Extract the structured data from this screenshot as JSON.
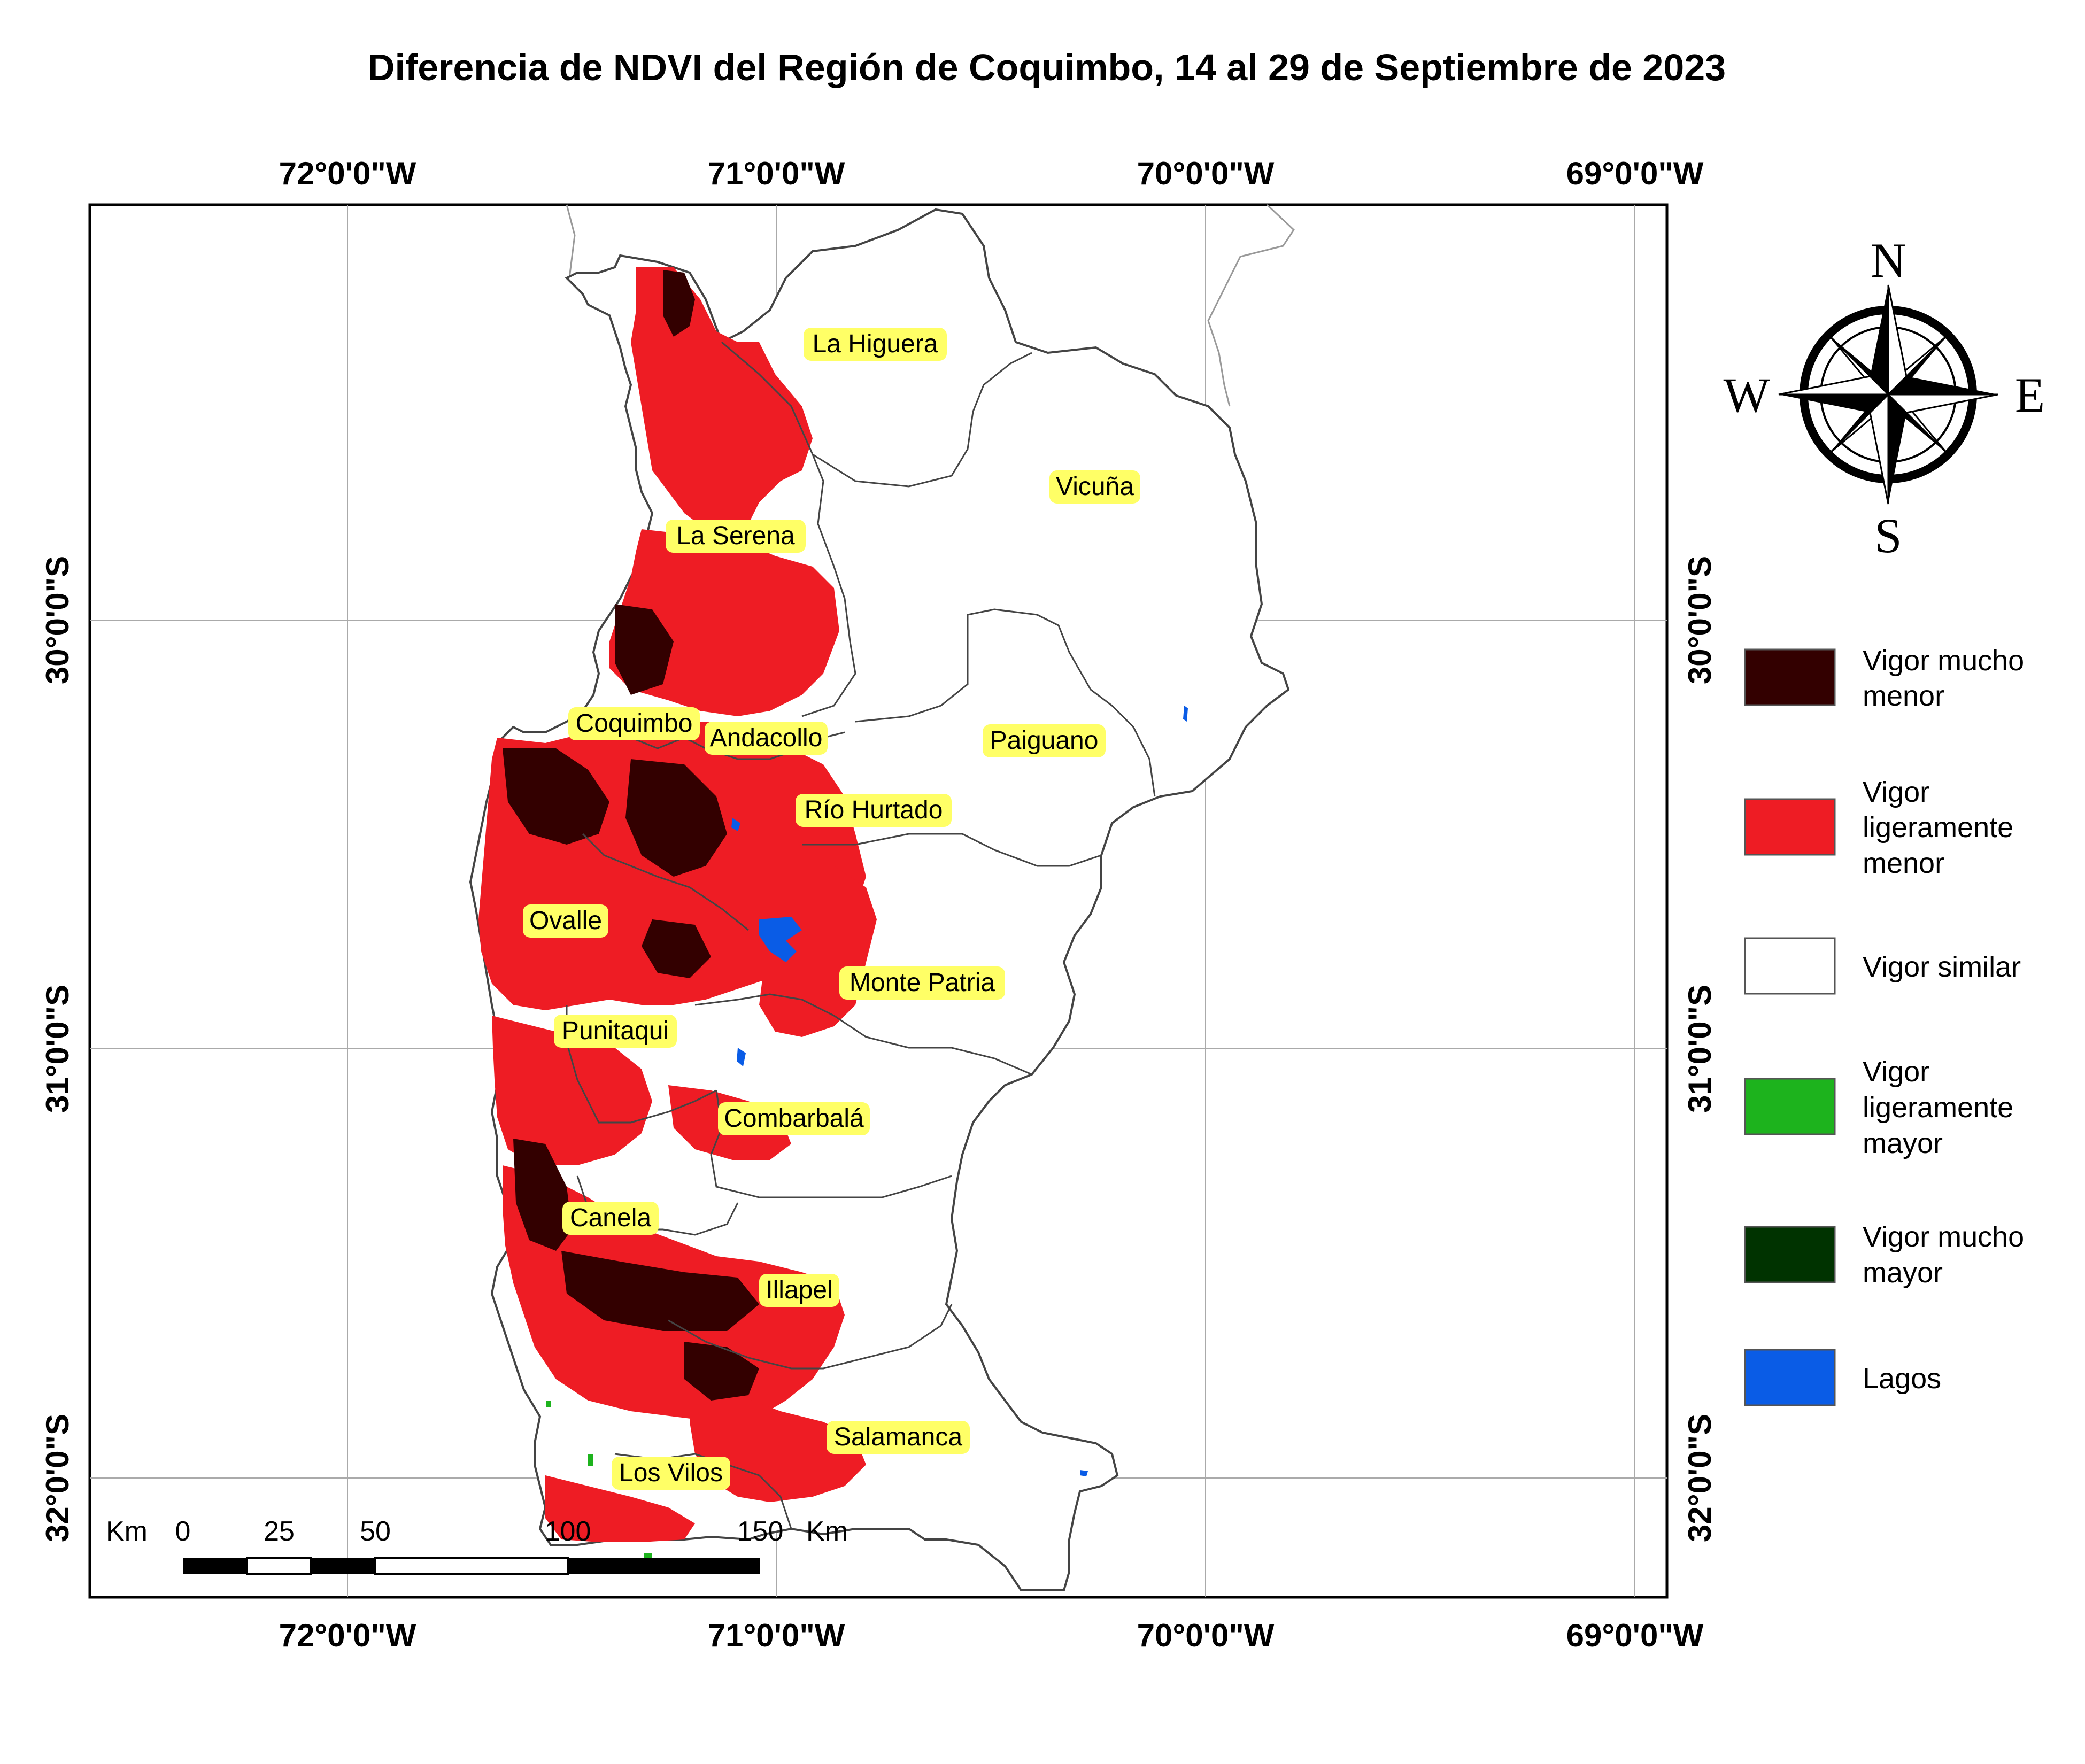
{
  "map": {
    "title": "Diferencia de NDVI del Región de Coquimbo, 14 al 29 de Septiembre de 2023",
    "longitude_labels": [
      "72°0'0\"W",
      "71°0'0\"W",
      "70°0'0\"W",
      "69°0'0\"W"
    ],
    "latitude_labels": [
      "30°0'0\"S",
      "31°0'0\"S",
      "32°0'0\"S"
    ],
    "places": [
      "La Higuera",
      "Vicuña",
      "La Serena",
      "Coquimbo",
      "Andacollo",
      "Paiguano",
      "Río Hurtado",
      "Ovalle",
      "Monte Patria",
      "Punitaqui",
      "Combarbalá",
      "Canela",
      "Illapel",
      "Salamanca",
      "Los Vilos"
    ]
  },
  "compass": {
    "north": "N",
    "south": "S",
    "east": "E",
    "west": "W"
  },
  "legend": {
    "items": [
      {
        "lines": [
          "Vigor mucho",
          "menor"
        ],
        "color": "#330000"
      },
      {
        "lines": [
          "Vigor",
          "ligeramente",
          "menor"
        ],
        "color": "#ee1c24"
      },
      {
        "lines": [
          "Vigor similar"
        ],
        "color": "#ffffff"
      },
      {
        "lines": [
          "Vigor",
          "ligeramente",
          "mayor"
        ],
        "color": "#1db31d"
      },
      {
        "lines": [
          "Vigor mucho",
          "mayor"
        ],
        "color": "#003300"
      },
      {
        "lines": [
          "Lagos"
        ],
        "color": "#0a5ce6"
      }
    ]
  },
  "scale_bar": {
    "unit": "Km",
    "ticks": [
      "0",
      "25",
      "50",
      "100",
      "150"
    ],
    "unit_right": "Km"
  }
}
